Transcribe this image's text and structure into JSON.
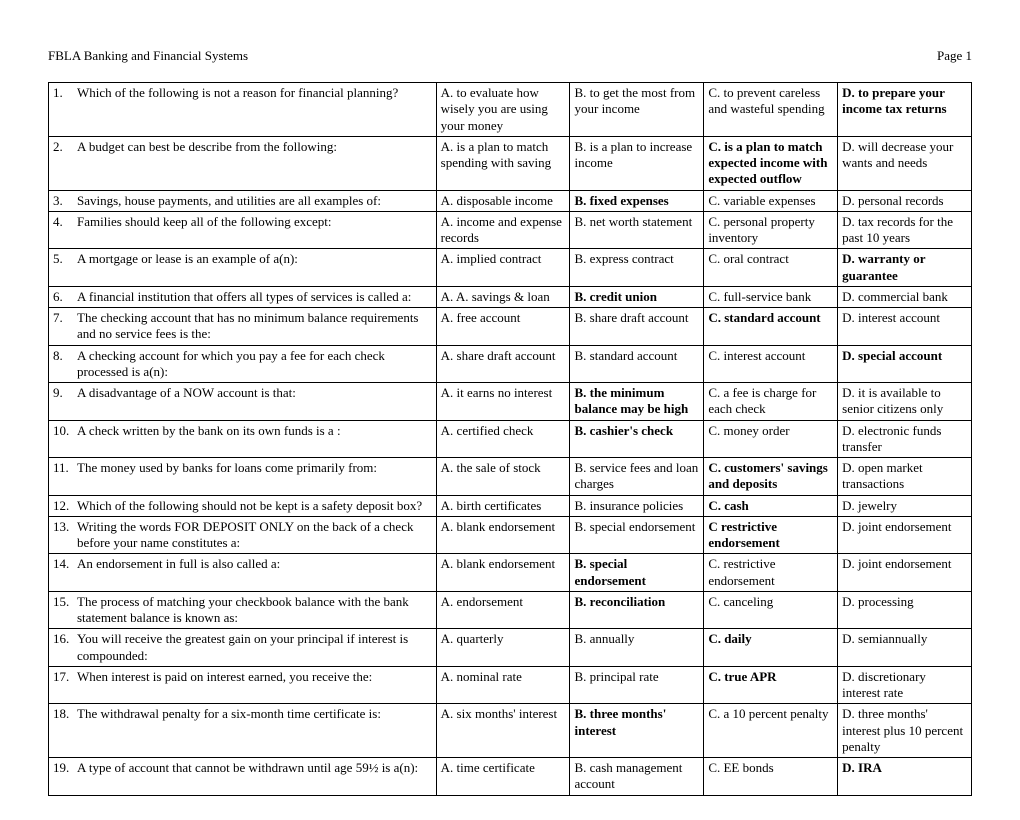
{
  "header": {
    "title": "FBLA Banking and Financial Systems",
    "page": "Page 1"
  },
  "columns": {
    "question_width_pct": 42,
    "option_width_pct": 14.5
  },
  "rows": [
    {
      "num": "1.",
      "q": "Which of the following is not a reason for financial planning?",
      "a": "A. to evaluate how wisely you are using your money",
      "b": "B. to get the most from your income",
      "c": "C. to prevent careless and wasteful spending",
      "d": "D. to prepare your income tax returns",
      "bold": "d"
    },
    {
      "num": "2.",
      "q": "A budget can best be describe from the following:",
      "a": "A. is a plan to match spending with saving",
      "b": "B. is a plan to increase income",
      "c": "C. is a plan to match expected income with expected outflow",
      "d": "D. will decrease your wants and needs",
      "bold": "c"
    },
    {
      "num": "3.",
      "q": "Savings, house payments, and utilities are all examples of:",
      "a": "A. disposable income",
      "b": "B. fixed expenses",
      "c": "C. variable expenses",
      "d": "D.  personal records",
      "bold": "b"
    },
    {
      "num": "4.",
      "q": "Families should keep all of the following except:",
      "a": "A. income and expense records",
      "b": "B.  net worth statement",
      "c": "C.   personal property inventory",
      "d": "D.  tax records for the past 10 years",
      "bold": ""
    },
    {
      "num": "5.",
      "q": "A mortgage or lease is an example of a(n):",
      "a": "A. implied contract",
      "b": "B.  express contract",
      "c": "C. oral contract",
      "d": "D.  warranty or guarantee",
      "bold": "d"
    },
    {
      "num": "6.",
      "q": "A financial institution that offers all types of services is called a:",
      "a": "A. A.  savings & loan",
      "b": "B.  credit union",
      "c": "C. full-service bank",
      "d": "D.  commercial bank",
      "bold": "b"
    },
    {
      "num": "7.",
      "q": "The checking account that has no minimum balance requirements and no service fees is the:",
      "a": "A. free account",
      "b": "B. share draft account",
      "c": "C.  standard account",
      "d": "D.  interest account",
      "bold": "c"
    },
    {
      "num": "8.",
      "q": "A checking account for which you pay a fee for each check processed is a(n):",
      "a": "A. share draft account",
      "b": "B.  standard account",
      "c": "C. interest account",
      "d": "D. special account",
      "bold": "d"
    },
    {
      "num": "9.",
      "q": "A disadvantage of a NOW account is that:",
      "a": "A. it earns no interest",
      "b": "B. the minimum balance may be high",
      "c": "C. a fee is charge for each check",
      "d": "D. it is available to senior citizens only",
      "bold": "b"
    },
    {
      "num": "10.",
      "q": "A check written by the bank on its own funds is a :",
      "a": "A. certified check",
      "b": "B.  cashier's check",
      "c": "C. money order",
      "d": "D.  electronic funds transfer",
      "bold": "b"
    },
    {
      "num": "11.",
      "q": "The money used by banks for loans come primarily from:",
      "a": "A. the sale of stock",
      "b": "B.  service fees and loan charges",
      "c": "C. customers' savings and deposits",
      "d": "D.  open market transactions",
      "bold": "c"
    },
    {
      "num": "12.",
      "q": "Which of the following should not be kept is a safety deposit box?",
      "a": "A. birth certificates",
      "b": "B.  insurance policies",
      "c": "C.  cash",
      "d": "D.  jewelry",
      "bold": "c"
    },
    {
      "num": "13.",
      "q": "Writing the words FOR DEPOSIT ONLY on the back of a check before your name constitutes a:",
      "a": "A.  blank endorsement",
      "b": "B.  special endorsement",
      "c": "C   restrictive endorsement",
      "d": "D.  joint endorsement",
      "bold": "c"
    },
    {
      "num": "14.",
      "q": "An endorsement in full is also called a:",
      "a": "A. blank endorsement",
      "b": "B.  special endorsement",
      "c": "C.  restrictive endorsement",
      "d": "D.  joint endorsement",
      "bold": "b"
    },
    {
      "num": "15.",
      "q": "The process of matching your checkbook balance with the bank statement balance is known as:",
      "a": "A. endorsement",
      "b": "B.  reconciliation",
      "c": "C.  canceling",
      "d": "D.  processing",
      "bold": "b"
    },
    {
      "num": "16.",
      "q": "You will receive the greatest gain on your principal if interest is compounded:",
      "a": "A. quarterly",
      "b": "B.  annually",
      "c": "C.  daily",
      "d": "D.  semiannually",
      "bold": "c"
    },
    {
      "num": "17.",
      "q": "When interest is paid on interest earned, you receive the:",
      "a": "A. nominal rate",
      "b": "B.  principal rate",
      "c": "C.  true APR",
      "d": "D.  discretionary interest rate",
      "bold": "c"
    },
    {
      "num": "18.",
      "q": "The withdrawal penalty for a six-month time certificate is:",
      "a": "A. six months' interest",
      "b": "B.  three months' interest",
      "c": "C.  a 10 percent penalty",
      "d": "D.  three months' interest plus 10 percent penalty",
      "bold": "b"
    },
    {
      "num": "19.",
      "q": "A type of account that cannot be withdrawn until age 59½ is a(n):",
      "a": "A. time certificate",
      "b": "B.  cash management account",
      "c": "C.  EE bonds",
      "d": "D.  IRA",
      "bold": "d"
    }
  ]
}
